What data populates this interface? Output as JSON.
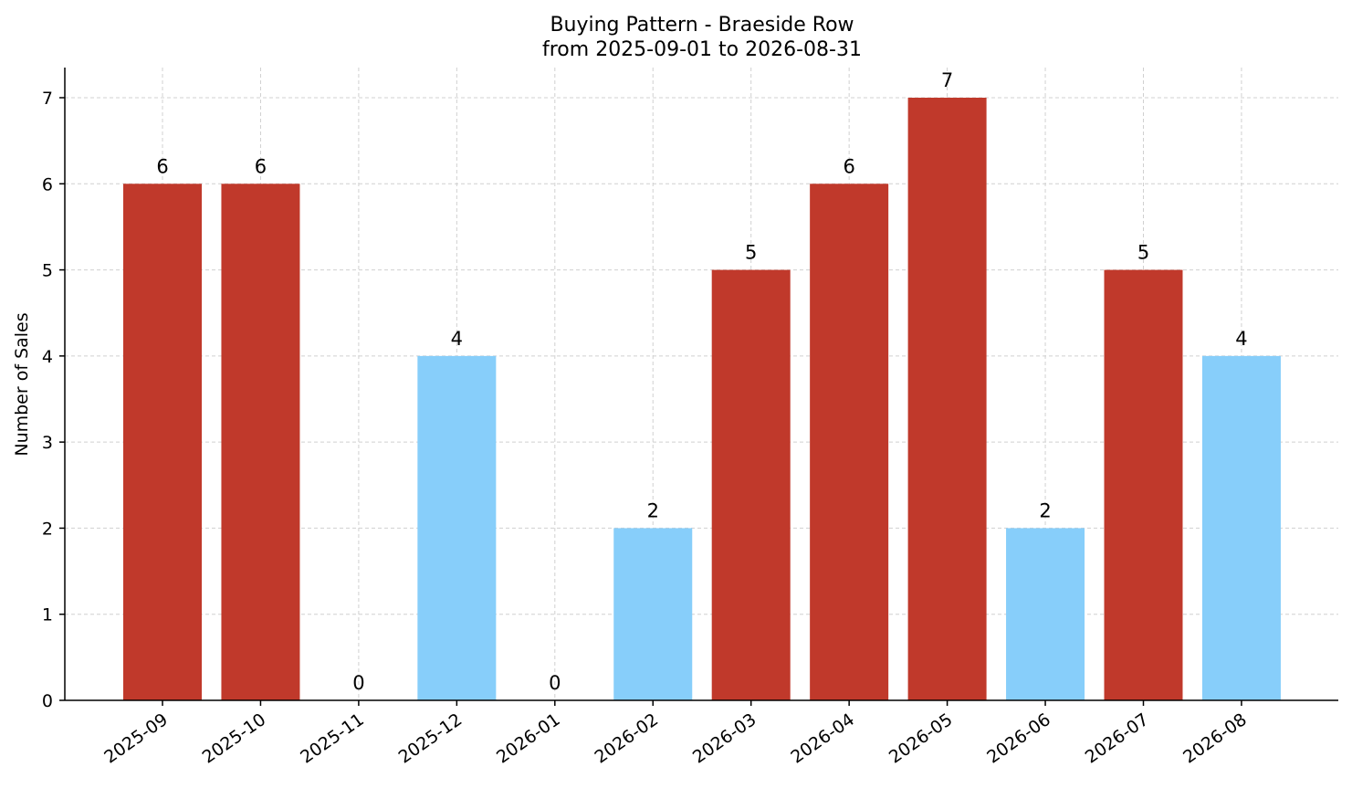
{
  "chart_data": {
    "type": "bar",
    "title": "Buying Pattern - Braeside Row",
    "subtitle": "from 2025-09-01 to 2026-08-31",
    "xlabel": "",
    "ylabel": "Number of Sales",
    "ylim": [
      0,
      7.35
    ],
    "yticks": [
      "0",
      "1",
      "2",
      "3",
      "4",
      "5",
      "6",
      "7"
    ],
    "grid": true,
    "categories": [
      "2025-09",
      "2025-10",
      "2025-11",
      "2025-12",
      "2026-01",
      "2026-02",
      "2026-03",
      "2026-04",
      "2026-05",
      "2026-06",
      "2026-07",
      "2026-08"
    ],
    "values": [
      6,
      6,
      0,
      4,
      0,
      2,
      5,
      6,
      7,
      2,
      5,
      4
    ],
    "colors": [
      "#c0392b",
      "#c0392b",
      "#87cefa",
      "#87cefa",
      "#87cefa",
      "#87cefa",
      "#c0392b",
      "#c0392b",
      "#c0392b",
      "#87cefa",
      "#c0392b",
      "#87cefa"
    ]
  }
}
